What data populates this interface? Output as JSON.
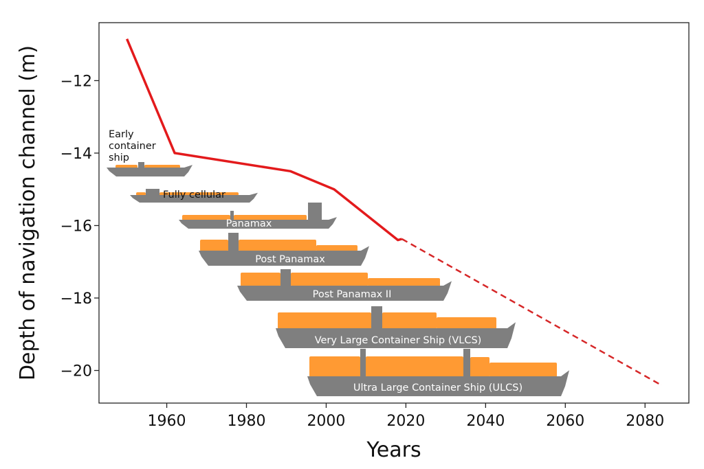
{
  "chart_data": {
    "type": "line",
    "title": "",
    "xlabel": "Years",
    "ylabel": "Depth of navigation channel (m)",
    "xlim": [
      1943,
      2091
    ],
    "ylim": [
      -20.9,
      -10.4
    ],
    "xticks": [
      1960,
      1980,
      2000,
      2020,
      2040,
      2060,
      2080
    ],
    "xtick_labels": [
      "1960",
      "1980",
      "2000",
      "2020",
      "2040",
      "2060",
      "2080"
    ],
    "yticks": [
      -12,
      -14,
      -16,
      -18,
      -20
    ],
    "ytick_labels": [
      "−12",
      "−14",
      "−16",
      "−18",
      "−20"
    ],
    "grid": false,
    "series": [
      {
        "style": "solid",
        "color": "#e31a1c",
        "x": [
          1950,
          1962,
          1991,
          2002,
          2018,
          2019
        ],
        "y": [
          -10.85,
          -14.0,
          -14.5,
          -15.0,
          -16.4,
          -16.37
        ]
      },
      {
        "style": "dashed",
        "color": "#d62728",
        "x": [
          2019,
          2084
        ],
        "y": [
          -16.37,
          -20.4
        ]
      }
    ],
    "annotations": [
      {
        "label_lines": [
          "Early",
          "container",
          "ship"
        ],
        "label_color": "#111111"
      },
      {
        "label_lines": [
          "Fully cellular"
        ],
        "label_color": "#111111"
      },
      {
        "label_lines": [
          "Panamax"
        ],
        "label_color": "#ffffff"
      },
      {
        "label_lines": [
          "Post Panamax"
        ],
        "label_color": "#ffffff"
      },
      {
        "label_lines": [
          "Post Panamax II"
        ],
        "label_color": "#ffffff"
      },
      {
        "label_lines": [
          "Very Large Container Ship (VLCS)"
        ],
        "label_color": "#ffffff"
      },
      {
        "label_lines": [
          "Ultra Large Container Ship (ULCS)"
        ],
        "label_color": "#ffffff"
      }
    ],
    "colors": {
      "hull": "#7f7f7f",
      "cargo": "#ff9a33"
    }
  }
}
